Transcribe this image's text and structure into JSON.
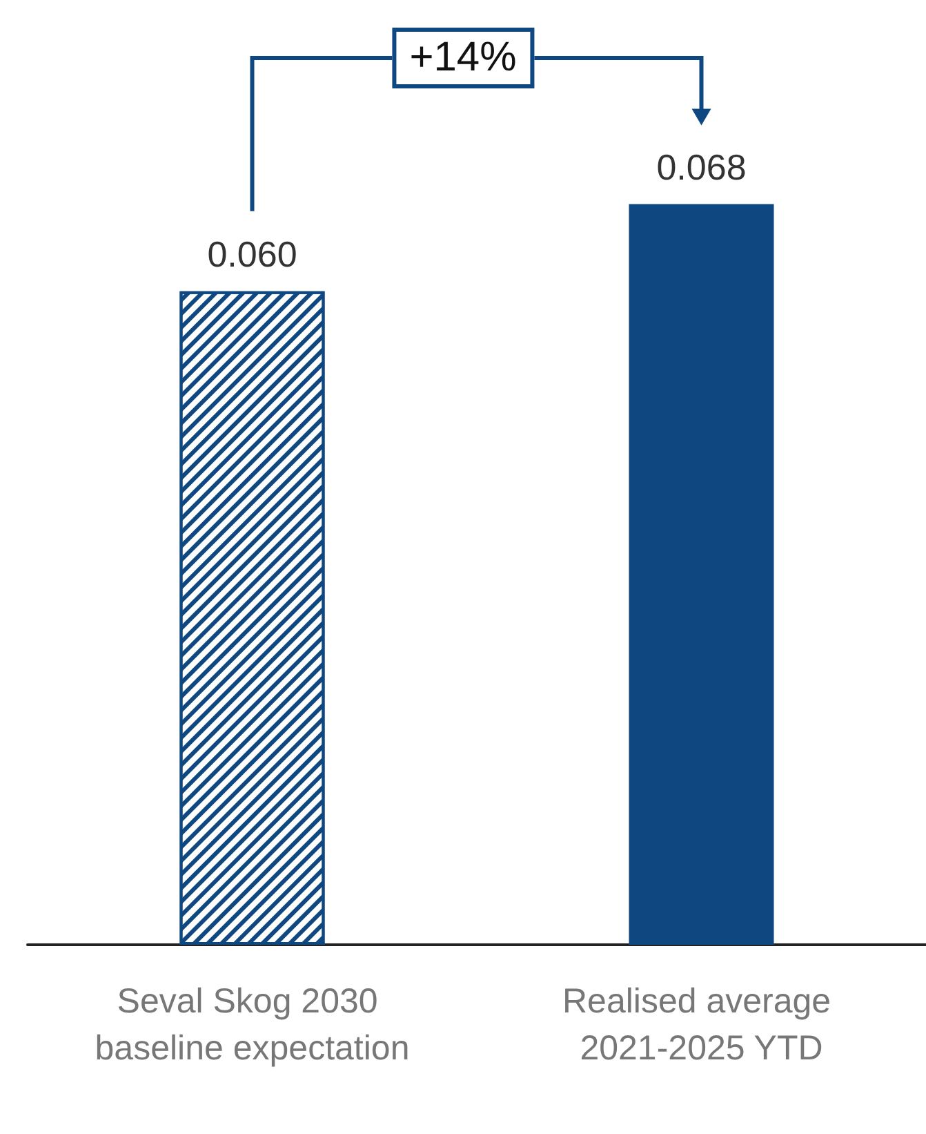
{
  "chart_data": {
    "type": "bar",
    "categories": [
      "Seval Skog 2030 baseline expectation",
      "Realised average 2021-2025 YTD"
    ],
    "values": [
      0.06,
      0.068
    ],
    "value_labels": [
      "0.060",
      "0.068"
    ],
    "colors": [
      "#0f4880",
      "#0f4880"
    ],
    "annotations": [
      "+14%"
    ]
  }
}
